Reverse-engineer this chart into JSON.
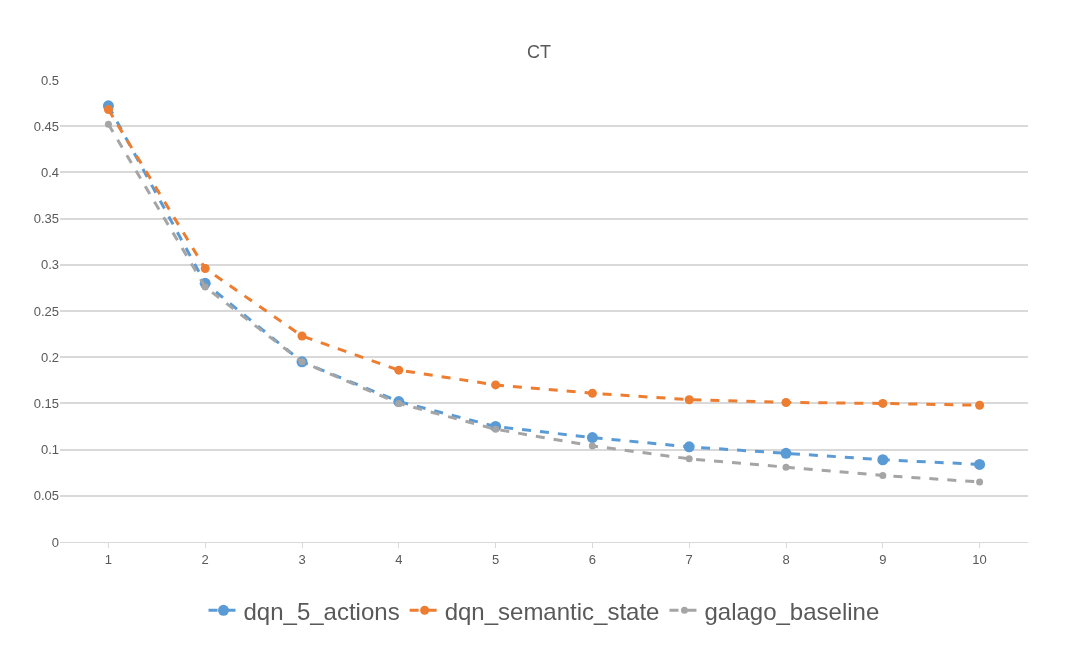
{
  "chart_data": {
    "type": "line",
    "title": "CT",
    "categories": [
      "1",
      "2",
      "3",
      "4",
      "5",
      "6",
      "7",
      "8",
      "9",
      "10"
    ],
    "series": [
      {
        "name": "dqn_5_actions",
        "color": "#5b9bd5",
        "values": [
          0.472,
          0.28,
          0.195,
          0.152,
          0.125,
          0.113,
          0.103,
          0.096,
          0.089,
          0.084
        ]
      },
      {
        "name": "dqn_semantic_state",
        "color": "#ed7d31",
        "values": [
          0.468,
          0.296,
          0.223,
          0.186,
          0.17,
          0.161,
          0.154,
          0.151,
          0.15,
          0.148
        ]
      },
      {
        "name": "galago_baseline",
        "color": "#a5a5a5",
        "values": [
          0.452,
          0.276,
          0.195,
          0.15,
          0.122,
          0.104,
          0.09,
          0.081,
          0.072,
          0.065
        ]
      }
    ],
    "ylim": [
      0,
      0.5
    ],
    "yticks": [
      0,
      0.05,
      0.1,
      0.15,
      0.2,
      0.25,
      0.3,
      0.35,
      0.4,
      0.45,
      0.5
    ],
    "grid": "y",
    "legend": "bottom",
    "marker": "circle",
    "line_style": "dashed"
  }
}
